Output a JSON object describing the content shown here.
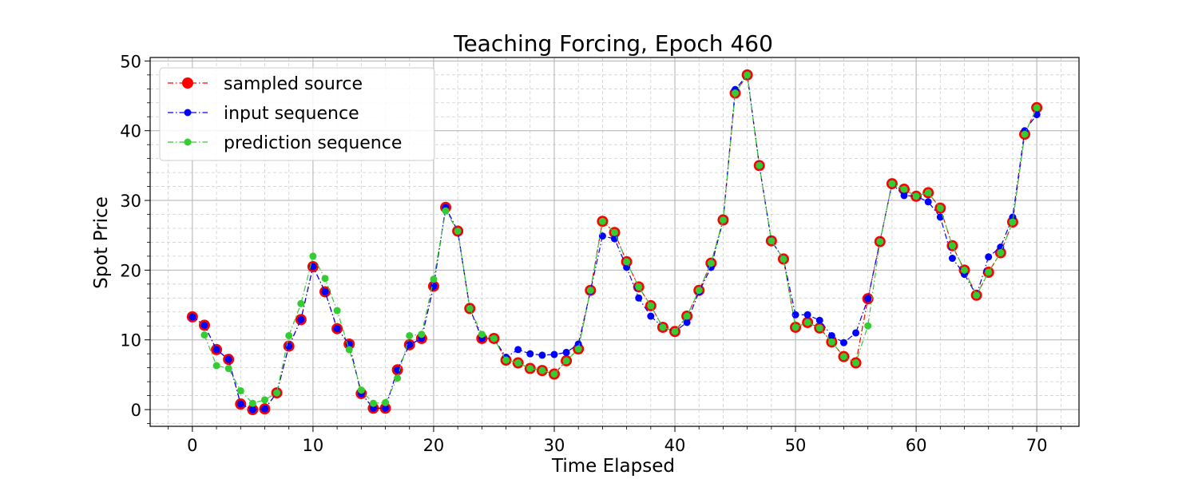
{
  "chart_data": {
    "type": "line",
    "title": "Teaching Forcing, Epoch 460",
    "xlabel": "Time Elapsed",
    "ylabel": "Spot Price",
    "xlim": [
      -3.5,
      73.5
    ],
    "ylim": [
      -2.4,
      50.5
    ],
    "xticks": [
      0,
      10,
      20,
      30,
      40,
      50,
      60,
      70
    ],
    "yticks": [
      0,
      10,
      20,
      30,
      40,
      50
    ],
    "grid": true,
    "minor_grid": true,
    "legend_position": "top-left",
    "series": [
      {
        "name": "sampled source",
        "color": "#ff0000",
        "marker": "large-circle",
        "linestyle": "dash-dot",
        "x": [
          0,
          1,
          2,
          3,
          4,
          5,
          6,
          7,
          8,
          9,
          10,
          11,
          12,
          13,
          14,
          15,
          16,
          17,
          18,
          19,
          20,
          21,
          22,
          23,
          24,
          25,
          26,
          27,
          28,
          29,
          30,
          31,
          32,
          33,
          34,
          35,
          36,
          37,
          38,
          39,
          40,
          41,
          42,
          43,
          44,
          45,
          46,
          47,
          48,
          49,
          50,
          51,
          52,
          53,
          54,
          55,
          56,
          57,
          58,
          59,
          60,
          61,
          62,
          63,
          64,
          65,
          66,
          67,
          68,
          69,
          70
        ],
        "values": [
          13.3,
          12.1,
          8.6,
          7.2,
          0.8,
          0.0,
          0.1,
          2.4,
          9.1,
          12.9,
          20.5,
          16.9,
          11.6,
          9.4,
          2.3,
          0.2,
          0.2,
          5.7,
          9.3,
          10.2,
          17.7,
          29.0,
          25.6,
          14.5,
          10.2,
          10.2,
          7.1,
          6.7,
          5.9,
          5.6,
          5.1,
          7.0,
          8.7,
          17.1,
          27.0,
          25.4,
          21.2,
          17.6,
          14.9,
          11.8,
          11.2,
          13.4,
          17.1,
          21.0,
          27.2,
          45.4,
          48.0,
          35.0,
          24.2,
          21.6,
          11.8,
          12.5,
          11.7,
          9.7,
          7.6,
          6.7,
          15.9,
          24.1,
          32.4,
          31.6,
          30.6,
          31.1,
          28.9,
          23.5,
          20.0,
          16.4,
          19.7,
          22.5,
          26.9,
          39.5,
          43.3
        ]
      },
      {
        "name": "input sequence",
        "color": "#0000ff",
        "marker": "circle",
        "linestyle": "dash-dot",
        "x": [
          0,
          1,
          2,
          3,
          4,
          5,
          6,
          7,
          8,
          9,
          10,
          11,
          12,
          13,
          14,
          15,
          16,
          17,
          18,
          19,
          20,
          21,
          22,
          23,
          24,
          25,
          26,
          27,
          28,
          29,
          30,
          31,
          32,
          33,
          34,
          35,
          36,
          37,
          38,
          39,
          40,
          41,
          42,
          43,
          44,
          45,
          46,
          47,
          48,
          49,
          50,
          51,
          52,
          53,
          54,
          55,
          56,
          57,
          58,
          59,
          60,
          61,
          62,
          63,
          64,
          65,
          66,
          67,
          68,
          69,
          70
        ],
        "values": [
          13.3,
          12.1,
          8.6,
          7.2,
          0.8,
          0.0,
          0.1,
          2.4,
          9.1,
          12.9,
          20.5,
          16.9,
          11.6,
          9.4,
          2.3,
          0.2,
          0.2,
          5.7,
          9.3,
          10.2,
          17.7,
          29.0,
          25.6,
          14.5,
          10.2,
          10.2,
          7.5,
          8.6,
          8.0,
          7.8,
          7.9,
          8.2,
          9.4,
          17.0,
          24.9,
          24.5,
          20.4,
          16.0,
          13.4,
          11.8,
          11.2,
          12.5,
          16.9,
          20.4,
          27.2,
          45.9,
          48.0,
          35.0,
          24.2,
          21.6,
          13.6,
          13.6,
          12.8,
          10.6,
          9.6,
          11.0,
          15.9,
          24.1,
          32.4,
          30.7,
          30.6,
          29.8,
          27.6,
          21.7,
          19.4,
          16.4,
          21.9,
          23.3,
          27.6,
          40.0,
          42.3
        ]
      },
      {
        "name": "prediction sequence",
        "color": "#33cc33",
        "marker": "circle",
        "linestyle": "dash-dot",
        "x": [
          1,
          2,
          3,
          4,
          5,
          6,
          7,
          8,
          9,
          10,
          11,
          12,
          13,
          14,
          15,
          16,
          17,
          18,
          19,
          20,
          21,
          22,
          23,
          24,
          25,
          26,
          27,
          28,
          29,
          30,
          31,
          32,
          33,
          34,
          35,
          36,
          37,
          38,
          39,
          40,
          41,
          42,
          43,
          44,
          45,
          46,
          47,
          48,
          49,
          50,
          51,
          52,
          53,
          54,
          55,
          56,
          57,
          58,
          59,
          60,
          61,
          62,
          63,
          64,
          65,
          66,
          67,
          68,
          69,
          70
        ],
        "values": [
          10.7,
          6.3,
          5.9,
          2.7,
          0.9,
          1.4,
          2.4,
          10.6,
          15.2,
          22.0,
          18.8,
          14.2,
          8.6,
          2.8,
          0.9,
          1.0,
          4.5,
          10.6,
          10.8,
          18.7,
          28.5,
          25.6,
          14.5,
          10.8,
          10.2,
          7.1,
          6.7,
          5.9,
          5.6,
          5.1,
          7.0,
          8.7,
          17.1,
          27.0,
          25.4,
          21.2,
          17.6,
          14.9,
          11.8,
          11.2,
          13.4,
          17.1,
          21.0,
          27.2,
          45.4,
          48.0,
          35.0,
          24.2,
          21.6,
          11.8,
          12.5,
          11.7,
          9.7,
          7.6,
          6.7,
          12.0,
          24.1,
          32.4,
          31.6,
          30.6,
          31.1,
          28.9,
          23.5,
          20.0,
          16.4,
          19.7,
          22.5,
          26.9,
          39.5,
          43.3
        ]
      }
    ]
  }
}
